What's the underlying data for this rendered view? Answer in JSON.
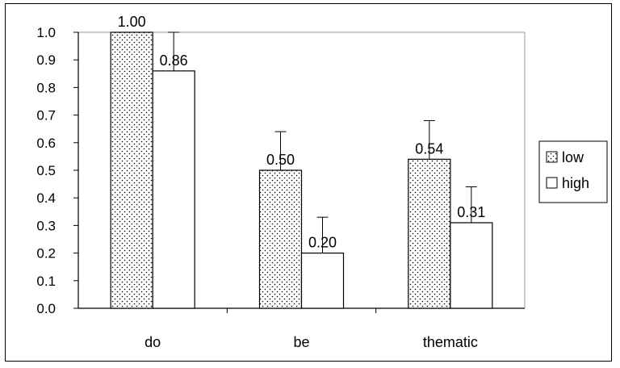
{
  "chart_data": {
    "type": "bar",
    "categories": [
      "do",
      "be",
      "thematic"
    ],
    "series": [
      {
        "name": "low",
        "values": [
          1.0,
          0.5,
          0.54
        ],
        "labels": [
          "1.00",
          "0.50",
          "0.54"
        ],
        "error": [
          0.0,
          0.14,
          0.14
        ],
        "pattern": "dotted"
      },
      {
        "name": "high",
        "values": [
          0.86,
          0.2,
          0.31
        ],
        "labels": [
          "0.86",
          "0.20",
          "0.31"
        ],
        "error": [
          0.14,
          0.13,
          0.13
        ],
        "pattern": "plain"
      }
    ],
    "ylim": [
      0,
      1.0
    ],
    "y_ticks": [
      "0.0",
      "0.1",
      "0.2",
      "0.3",
      "0.4",
      "0.5",
      "0.6",
      "0.7",
      "0.8",
      "0.9",
      "1.0"
    ],
    "title": "",
    "xlabel": "",
    "ylabel": "",
    "legend_position": "right",
    "grid": false,
    "colors": {
      "bar_fill": "#ffffff",
      "stroke": "#000000",
      "plot_border": "#999999"
    }
  }
}
